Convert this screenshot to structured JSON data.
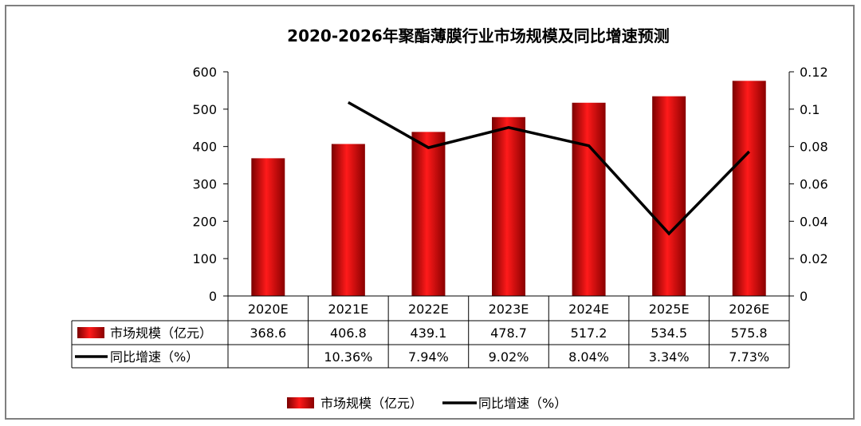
{
  "chart_data": {
    "type": "bar",
    "title": "2020-2026年聚酯薄膜行业市场规模及同比增速预测",
    "categories": [
      "2020E",
      "2021E",
      "2022E",
      "2023E",
      "2024E",
      "2025E",
      "2026E"
    ],
    "series": [
      {
        "name": "市场规模（亿元）",
        "type": "bar",
        "axis": "left",
        "values": [
          368.6,
          406.8,
          439.1,
          478.7,
          517.2,
          534.5,
          575.8
        ],
        "labels": [
          "368.6",
          "406.8",
          "439.1",
          "478.7",
          "517.2",
          "534.5",
          "575.8"
        ]
      },
      {
        "name": "同比增速（%）",
        "type": "line",
        "axis": "right",
        "values": [
          null,
          0.1036,
          0.0794,
          0.0902,
          0.0804,
          0.0334,
          0.0773
        ],
        "labels": [
          "",
          "10.36%",
          "7.94%",
          "9.02%",
          "8.04%",
          "3.34%",
          "7.73%"
        ]
      }
    ],
    "ylim": [
      0,
      600
    ],
    "yticks": [
      "0",
      "100",
      "200",
      "300",
      "400",
      "500",
      "600"
    ],
    "y2lim": [
      0,
      0.12
    ],
    "y2ticks": [
      "0",
      "0.02",
      "0.04",
      "0.06",
      "0.08",
      "0.1",
      "0.12"
    ],
    "xlabel": "",
    "ylabel": "",
    "legend_position": "bottom",
    "grid": false,
    "data_table": true,
    "colors": {
      "bar": "#c00000",
      "bar_light": "#ff1a1a",
      "bar_dark": "#7a0000",
      "line": "#000000",
      "axis": "#000000"
    }
  }
}
